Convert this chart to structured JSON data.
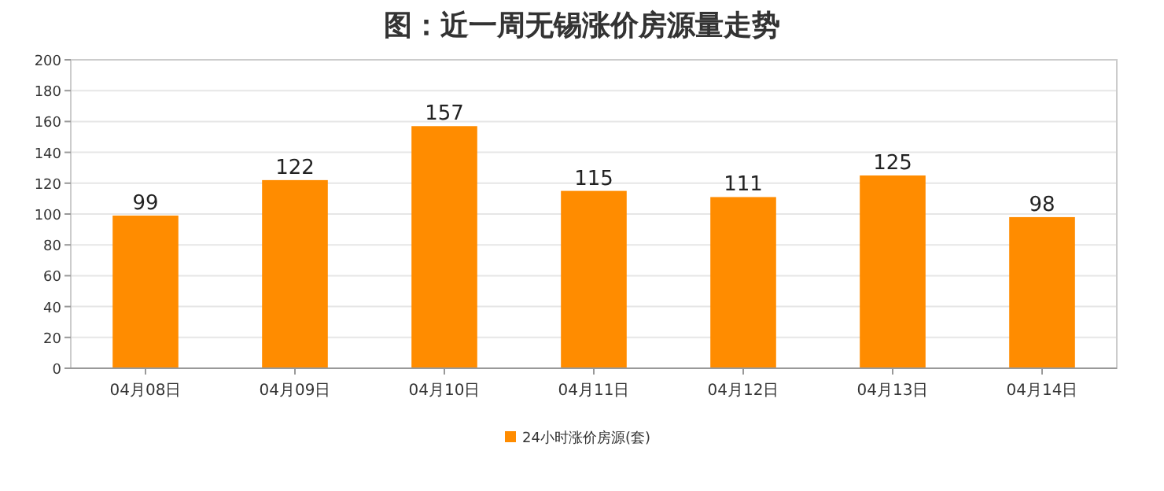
{
  "chart_data": {
    "type": "bar",
    "title": "图：近一周无锡涨价房源量走势",
    "categories": [
      "04月08日",
      "04月09日",
      "04月10日",
      "04月11日",
      "04月12日",
      "04月13日",
      "04月14日"
    ],
    "series": [
      {
        "name": "24小时涨价房源(套)",
        "color": "#ff8c00",
        "values": [
          99,
          122,
          157,
          115,
          111,
          125,
          98
        ]
      }
    ],
    "ylim": [
      0,
      200
    ],
    "yticks": [
      0,
      20,
      40,
      60,
      80,
      100,
      120,
      140,
      160,
      180,
      200
    ],
    "grid": "y",
    "legend": "bottom",
    "data_labels": true
  }
}
